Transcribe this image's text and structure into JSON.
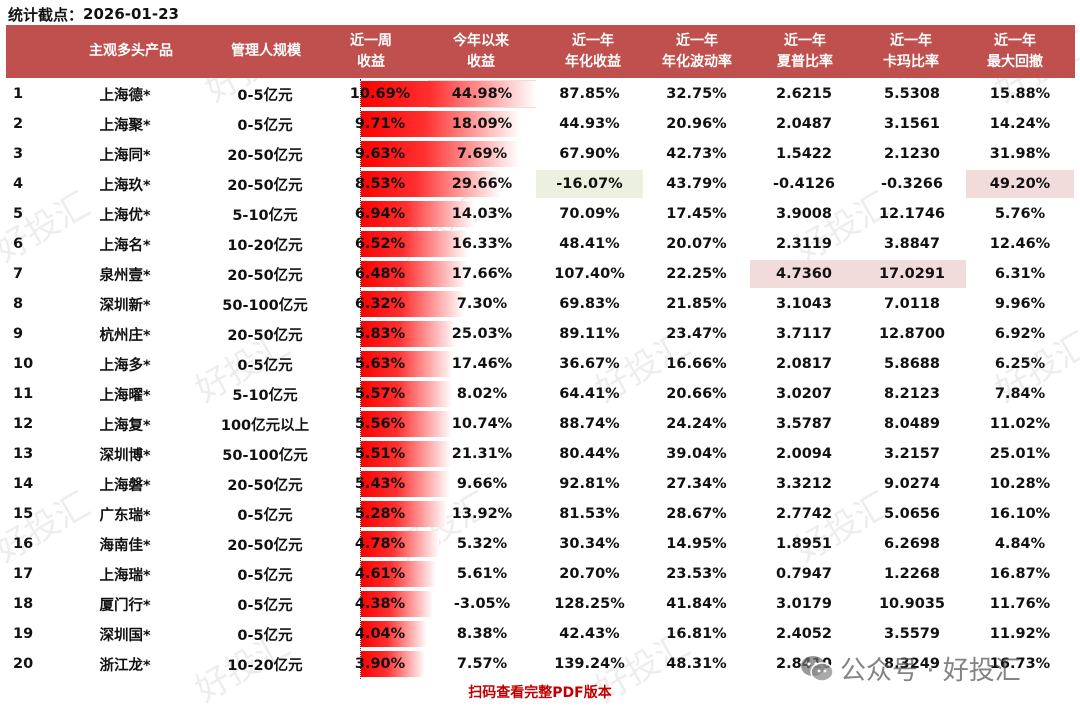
{
  "header_line": {
    "label": "统计截点：",
    "date": "2026-01-23"
  },
  "table": {
    "columns": [
      {
        "line1": "",
        "line2": ""
      },
      {
        "line1": "主观多头产品",
        "line2": ""
      },
      {
        "line1": "管理人规模",
        "line2": ""
      },
      {
        "line1": "近一周",
        "line2": "收益"
      },
      {
        "line1": "今年以来",
        "line2": "收益"
      },
      {
        "line1": "近一年",
        "line2": "年化收益"
      },
      {
        "line1": "近一年",
        "line2": "年化波动率"
      },
      {
        "line1": "近一年",
        "line2": "夏普比率"
      },
      {
        "line1": "近一年",
        "line2": "卡玛比率"
      },
      {
        "line1": "近一年",
        "line2": "最大回撤"
      }
    ],
    "rows": [
      {
        "rank": "1",
        "product": "上海德*",
        "scale": "0-5亿元",
        "week": "10.69%",
        "ytd": "44.98%",
        "ann_ret": "87.85%",
        "ann_vol": "32.75%",
        "sharpe": "2.6215",
        "calmar": "5.5308",
        "mdd": "15.88%"
      },
      {
        "rank": "2",
        "product": "上海聚*",
        "scale": "0-5亿元",
        "week": "9.71%",
        "ytd": "18.09%",
        "ann_ret": "44.93%",
        "ann_vol": "20.96%",
        "sharpe": "2.0487",
        "calmar": "3.1561",
        "mdd": "14.24%"
      },
      {
        "rank": "3",
        "product": "上海同*",
        "scale": "20-50亿元",
        "week": "9.63%",
        "ytd": "7.69%",
        "ann_ret": "67.90%",
        "ann_vol": "42.73%",
        "sharpe": "1.5422",
        "calmar": "2.1230",
        "mdd": "31.98%"
      },
      {
        "rank": "4",
        "product": "上海玖*",
        "scale": "20-50亿元",
        "week": "8.53%",
        "ytd": "29.66%",
        "ann_ret": "-16.07%",
        "ann_vol": "43.79%",
        "sharpe": "-0.4126",
        "calmar": "-0.3266",
        "mdd": "49.20%"
      },
      {
        "rank": "5",
        "product": "上海优*",
        "scale": "5-10亿元",
        "week": "6.94%",
        "ytd": "14.03%",
        "ann_ret": "70.09%",
        "ann_vol": "17.45%",
        "sharpe": "3.9008",
        "calmar": "12.1746",
        "mdd": "5.76%"
      },
      {
        "rank": "6",
        "product": "上海名*",
        "scale": "10-20亿元",
        "week": "6.52%",
        "ytd": "16.33%",
        "ann_ret": "48.41%",
        "ann_vol": "20.07%",
        "sharpe": "2.3119",
        "calmar": "3.8847",
        "mdd": "12.46%"
      },
      {
        "rank": "7",
        "product": "泉州壹*",
        "scale": "20-50亿元",
        "week": "6.48%",
        "ytd": "17.66%",
        "ann_ret": "107.40%",
        "ann_vol": "22.25%",
        "sharpe": "4.7360",
        "calmar": "17.0291",
        "mdd": "6.31%"
      },
      {
        "rank": "8",
        "product": "深圳新*",
        "scale": "50-100亿元",
        "week": "6.32%",
        "ytd": "7.30%",
        "ann_ret": "69.83%",
        "ann_vol": "21.85%",
        "sharpe": "3.1043",
        "calmar": "7.0118",
        "mdd": "9.96%"
      },
      {
        "rank": "9",
        "product": "杭州庄*",
        "scale": "20-50亿元",
        "week": "5.83%",
        "ytd": "25.03%",
        "ann_ret": "89.11%",
        "ann_vol": "23.47%",
        "sharpe": "3.7117",
        "calmar": "12.8700",
        "mdd": "6.92%"
      },
      {
        "rank": "10",
        "product": "上海多*",
        "scale": "0-5亿元",
        "week": "5.63%",
        "ytd": "17.46%",
        "ann_ret": "36.67%",
        "ann_vol": "16.66%",
        "sharpe": "2.0817",
        "calmar": "5.8688",
        "mdd": "6.25%"
      },
      {
        "rank": "11",
        "product": "上海曜*",
        "scale": "5-10亿元",
        "week": "5.57%",
        "ytd": "8.02%",
        "ann_ret": "64.41%",
        "ann_vol": "20.66%",
        "sharpe": "3.0207",
        "calmar": "8.2123",
        "mdd": "7.84%"
      },
      {
        "rank": "12",
        "product": "上海复*",
        "scale": "100亿元以上",
        "week": "5.56%",
        "ytd": "10.74%",
        "ann_ret": "88.74%",
        "ann_vol": "24.24%",
        "sharpe": "3.5787",
        "calmar": "8.0489",
        "mdd": "11.02%"
      },
      {
        "rank": "13",
        "product": "深圳博*",
        "scale": "50-100亿元",
        "week": "5.51%",
        "ytd": "21.31%",
        "ann_ret": "80.44%",
        "ann_vol": "39.04%",
        "sharpe": "2.0094",
        "calmar": "3.2157",
        "mdd": "25.01%"
      },
      {
        "rank": "14",
        "product": "上海磐*",
        "scale": "20-50亿元",
        "week": "5.43%",
        "ytd": "9.66%",
        "ann_ret": "92.81%",
        "ann_vol": "27.34%",
        "sharpe": "3.3212",
        "calmar": "9.0274",
        "mdd": "10.28%"
      },
      {
        "rank": "15",
        "product": "广东瑞*",
        "scale": "0-5亿元",
        "week": "5.28%",
        "ytd": "13.92%",
        "ann_ret": "81.53%",
        "ann_vol": "28.67%",
        "sharpe": "2.7742",
        "calmar": "5.0656",
        "mdd": "16.10%"
      },
      {
        "rank": "16",
        "product": "海南佳*",
        "scale": "20-50亿元",
        "week": "4.78%",
        "ytd": "5.32%",
        "ann_ret": "30.34%",
        "ann_vol": "14.95%",
        "sharpe": "1.8951",
        "calmar": "6.2698",
        "mdd": "4.84%"
      },
      {
        "rank": "17",
        "product": "上海瑞*",
        "scale": "0-5亿元",
        "week": "4.61%",
        "ytd": "5.61%",
        "ann_ret": "20.70%",
        "ann_vol": "23.53%",
        "sharpe": "0.7947",
        "calmar": "1.2268",
        "mdd": "16.87%"
      },
      {
        "rank": "18",
        "product": "厦门行*",
        "scale": "0-5亿元",
        "week": "4.38%",
        "ytd": "-3.05%",
        "ann_ret": "128.25%",
        "ann_vol": "41.84%",
        "sharpe": "3.0179",
        "calmar": "10.9035",
        "mdd": "11.76%"
      },
      {
        "rank": "19",
        "product": "深圳国*",
        "scale": "0-5亿元",
        "week": "4.04%",
        "ytd": "8.38%",
        "ann_ret": "42.43%",
        "ann_vol": "16.81%",
        "sharpe": "2.4052",
        "calmar": "3.5579",
        "mdd": "11.92%"
      },
      {
        "rank": "20",
        "product": "浙江龙*",
        "scale": "10-20亿元",
        "week": "3.90%",
        "ytd": "7.57%",
        "ann_ret": "139.24%",
        "ann_vol": "48.31%",
        "sharpe": "2.8410",
        "calmar": "8.3249",
        "mdd": "16.73%"
      }
    ],
    "week_bar_values": [
      10.69,
      9.71,
      9.63,
      8.53,
      6.94,
      6.52,
      6.48,
      6.32,
      5.83,
      5.63,
      5.57,
      5.56,
      5.51,
      5.43,
      5.28,
      4.78,
      4.61,
      4.38,
      4.04,
      3.9
    ],
    "highlights": [
      {
        "row": 0,
        "col": "ytd",
        "color": "red"
      },
      {
        "row": 3,
        "col": "ann_ret",
        "color": "green"
      },
      {
        "row": 3,
        "col": "mdd",
        "color": "red"
      },
      {
        "row": 6,
        "col": "sharpe",
        "color": "red"
      },
      {
        "row": 6,
        "col": "calmar",
        "color": "red"
      }
    ]
  },
  "colors": {
    "header_bg": "#c0504d",
    "highlight_red": "#f2dcdb",
    "highlight_green": "#ebf1de",
    "bar": "#ff0000",
    "footer_text": "#c00000"
  },
  "footer": {
    "note": "扫码查看完整PDF版本"
  },
  "watermark": {
    "text": "好投汇",
    "wechat_label": "公众号 · 好投汇"
  }
}
